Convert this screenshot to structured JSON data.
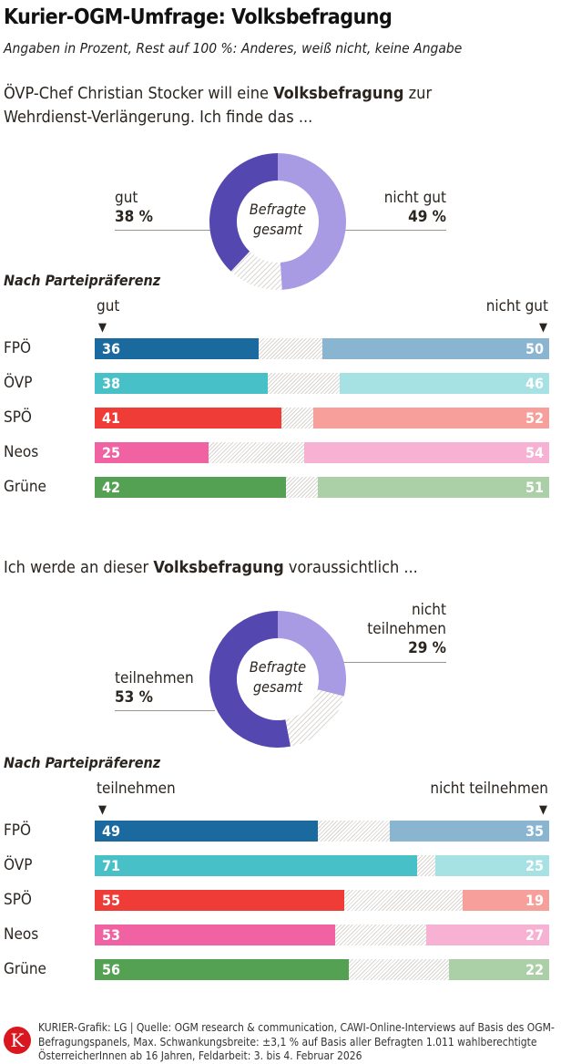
{
  "title": "Kurier-OGM-Umfrage: Volksbefragung",
  "subtitle": "Angaben in Prozent, Rest auf 100 %: Anderes, weiß nicht, keine Angabe",
  "colors": {
    "donut_dark": "#5448b0",
    "donut_light": "#a89be3",
    "hatch": "#d8d4d0",
    "parties": {
      "FPÖ": [
        "#1a6aa0",
        "#8ab5d1"
      ],
      "ÖVP": [
        "#48c0c8",
        "#a6e1e4"
      ],
      "SPÖ": [
        "#f03c36",
        "#f7a09b"
      ],
      "Neos": [
        "#f062a2",
        "#f7b2d3"
      ],
      "Grüne": [
        "#55a153",
        "#abd0a7"
      ]
    }
  },
  "chart_data": [
    {
      "type": "pie",
      "question_pre": "ÖVP-Chef Christian Stocker will eine ",
      "question_bold": "Volksbefragung",
      "question_post": " zur Wehrdienst-Verlängerung. Ich finde das ...",
      "center_label": [
        "Befragte",
        "gesamt"
      ],
      "slices": [
        {
          "label": "gut",
          "value": 38,
          "display": "38 %"
        },
        {
          "label": "nicht gut",
          "value": 49,
          "display": "49 %"
        }
      ]
    },
    {
      "type": "bar",
      "stacked": true,
      "title": "Nach Parteipräferenz",
      "left_label": "gut",
      "right_label": "nicht gut",
      "xlim": [
        0,
        100
      ],
      "categories": [
        "FPÖ",
        "ÖVP",
        "SPÖ",
        "Neos",
        "Grüne"
      ],
      "series": [
        {
          "name": "gut",
          "values": [
            36,
            38,
            41,
            25,
            42
          ]
        },
        {
          "name": "nicht gut",
          "values": [
            50,
            46,
            52,
            54,
            51
          ]
        }
      ]
    },
    {
      "type": "pie",
      "question_pre": "Ich werde an dieser ",
      "question_bold": "Volksbefragung",
      "question_post": " voraussichtlich ...",
      "center_label": [
        "Befragte",
        "gesamt"
      ],
      "slices": [
        {
          "label": "teilnehmen",
          "value": 53,
          "display": "53 %"
        },
        {
          "label": "nicht teilnehmen",
          "value": 29,
          "display": "29 %"
        }
      ]
    },
    {
      "type": "bar",
      "stacked": true,
      "title": "Nach Parteipräferenz",
      "left_label": "teilnehmen",
      "right_label": "nicht teilnehmen",
      "xlim": [
        0,
        100
      ],
      "categories": [
        "FPÖ",
        "ÖVP",
        "SPÖ",
        "Neos",
        "Grüne"
      ],
      "series": [
        {
          "name": "teilnehmen",
          "values": [
            49,
            71,
            55,
            53,
            56
          ]
        },
        {
          "name": "nicht teilnehmen",
          "values": [
            35,
            25,
            19,
            27,
            22
          ]
        }
      ]
    }
  ],
  "footer": "KURIER-Grafik: LG | Quelle: OGM research & communication, CAWI-Online-Interviews auf Basis des OGM-Befragungspanels, Max. Schwankungsbreite: ±3,1 % auf Basis aller Befragten 1.011 wahlberechtigte ÖsterreicherInnen ab 16 Jahren, Feldarbeit: 3. bis 4. Februar 2026",
  "logo": "K"
}
